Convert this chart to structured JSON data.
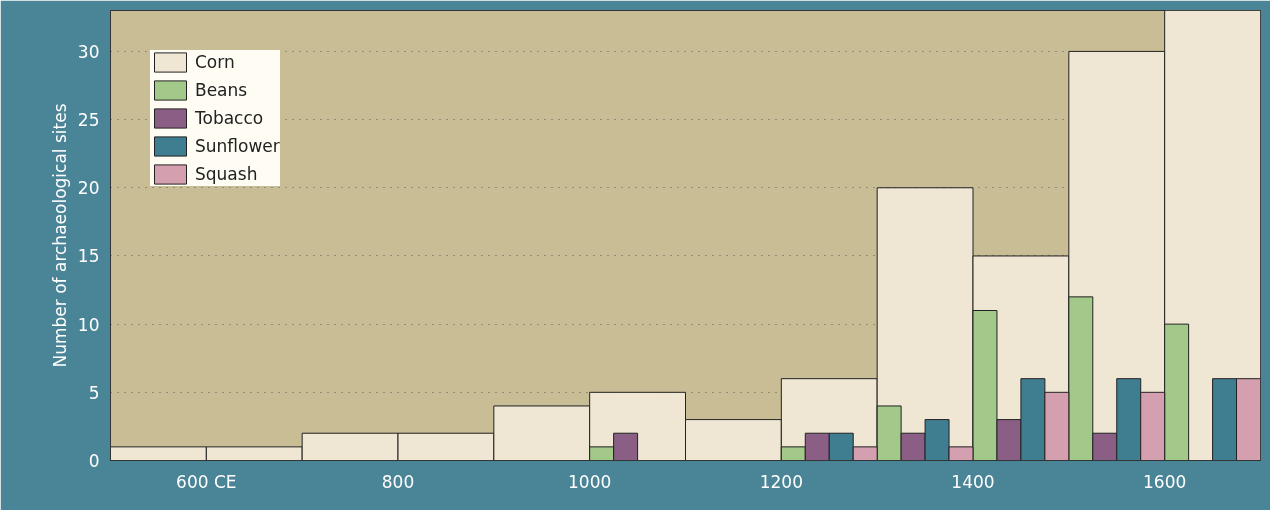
{
  "chart_data": {
    "type": "bar",
    "ylabel": "Number of archaeological sites",
    "xlim": [
      500,
      1700
    ],
    "ylim": [
      0,
      33
    ],
    "xticks": [
      {
        "value": 600,
        "label": "600 CE"
      },
      800,
      1000,
      1200,
      1400,
      1600
    ],
    "yticks": [
      0,
      5,
      10,
      15,
      20,
      25,
      30
    ],
    "grid": "y",
    "legend": "top left",
    "series": [
      {
        "name": "Corn",
        "color": "#efe6d3",
        "x": [
          550,
          650,
          750,
          850,
          950,
          1050,
          1150,
          1250,
          1350,
          1450,
          1550,
          1650
        ],
        "values": [
          1,
          1,
          2,
          2,
          4,
          5,
          3,
          6,
          20,
          15,
          30,
          33
        ]
      },
      {
        "name": "Beans",
        "color": "#a3c98a",
        "x": [
          1012.5,
          1037.5,
          1062.5,
          1087.5,
          1112.5,
          1137.5,
          1162.5,
          1187.5,
          1212.5,
          1237.5,
          1262.5,
          1287.5,
          1312.5,
          1337.5,
          1362.5,
          1387.5,
          1412.5,
          1437.5,
          1462.5,
          1487.5,
          1512.5,
          1537.5,
          1562.5,
          1587.5,
          1612.5
        ],
        "values": [
          1,
          null,
          null,
          null,
          null,
          null,
          null,
          null,
          1,
          null,
          null,
          null,
          4,
          null,
          null,
          null,
          11,
          null,
          null,
          null,
          12,
          null,
          null,
          null,
          10
        ]
      },
      {
        "name": "Tobacco",
        "color": "#8b5e86",
        "x": [
          1037.5,
          1062.5,
          1087.5,
          1112.5,
          1137.5,
          1162.5,
          1187.5,
          1212.5,
          1237.5,
          1262.5,
          1287.5,
          1312.5,
          1337.5,
          1362.5,
          1387.5,
          1412.5,
          1437.5,
          1462.5,
          1487.5,
          1512.5,
          1537.5
        ],
        "values": [
          2,
          null,
          null,
          null,
          null,
          null,
          null,
          null,
          2,
          null,
          null,
          null,
          2,
          null,
          null,
          null,
          3,
          null,
          null,
          null,
          2
        ]
      },
      {
        "name": "Sunflower",
        "color": "#3f7d90",
        "x": [
          1262.5,
          1287.5,
          1312.5,
          1337.5,
          1362.5,
          1387.5,
          1412.5,
          1437.5,
          1462.5,
          1487.5,
          1512.5,
          1537.5,
          1562.5,
          1587.5,
          1612.5,
          1637.5,
          1662.5
        ],
        "values": [
          2,
          null,
          null,
          null,
          3,
          null,
          null,
          null,
          6,
          null,
          null,
          null,
          6,
          null,
          null,
          null,
          6
        ]
      },
      {
        "name": "Squash",
        "color": "#d4a0b0",
        "x": [
          1287.5,
          1312.5,
          1337.5,
          1362.5,
          1387.5,
          1412.5,
          1437.5,
          1462.5,
          1487.5,
          1512.5,
          1537.5,
          1562.5,
          1587.5,
          1612.5,
          1637.5,
          1662.5,
          1687.5
        ],
        "values": [
          1,
          null,
          null,
          null,
          1,
          null,
          null,
          null,
          5,
          null,
          null,
          null,
          5,
          null,
          null,
          null,
          6
        ]
      }
    ]
  }
}
